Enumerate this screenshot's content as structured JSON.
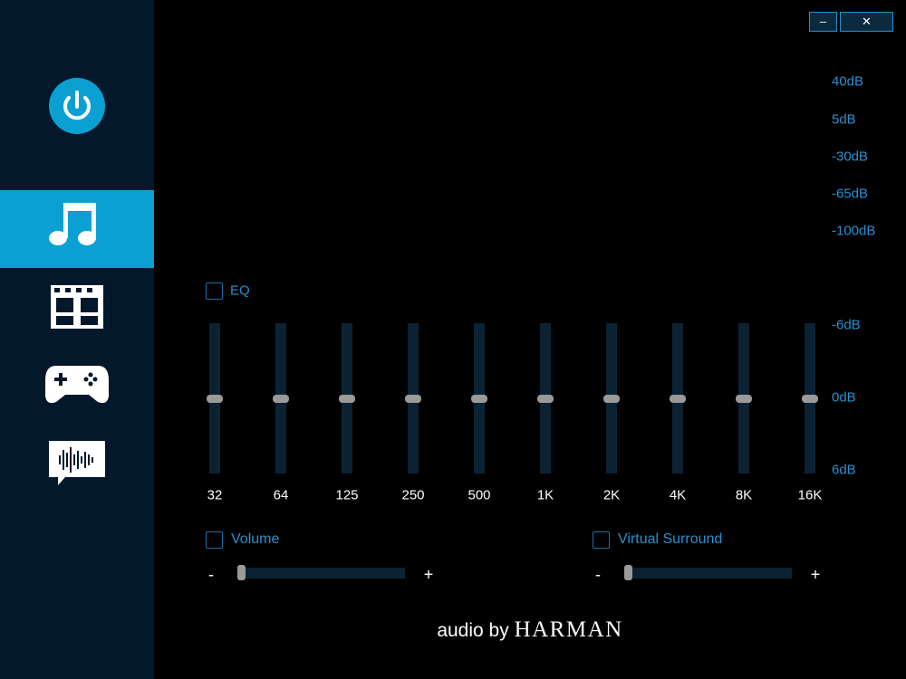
{
  "window_controls": {
    "minimize": "–",
    "close": "✕"
  },
  "db_scale": [
    "40dB",
    "5dB",
    "-30dB",
    "-65dB",
    "-100dB"
  ],
  "eq": {
    "label": "EQ",
    "scale": [
      "-6dB",
      "0dB",
      "6dB"
    ],
    "bands": [
      "32",
      "64",
      "125",
      "250",
      "500",
      "1K",
      "2K",
      "4K",
      "8K",
      "16K"
    ]
  },
  "volume": {
    "label": "Volume",
    "minus": "-",
    "plus": "+"
  },
  "surround": {
    "label": "Virtual Surround",
    "minus": "-",
    "plus": "+"
  },
  "footer": {
    "prefix": "audio by",
    "brand": "HARMAN"
  }
}
